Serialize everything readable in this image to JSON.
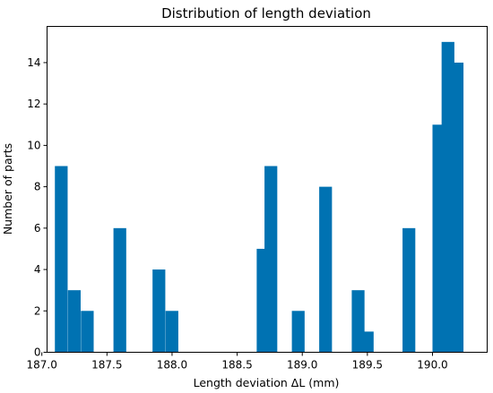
{
  "chart_data": {
    "type": "bar",
    "title": "Distribution of length deviation",
    "xlabel": "Length deviation ΔL (mm)",
    "ylabel": "Number of parts",
    "xlim": [
      187.04,
      190.42
    ],
    "ylim": [
      0,
      15.75
    ],
    "grid": false,
    "bar_color": "#0072b2",
    "bin_width": 0.098,
    "xticks": [
      187.0,
      187.5,
      188.0,
      188.5,
      189.0,
      189.5,
      190.0
    ],
    "yticks": [
      0,
      2,
      4,
      6,
      8,
      10,
      12,
      14
    ],
    "bins": [
      {
        "x": 187.1,
        "count": 9
      },
      {
        "x": 187.2,
        "count": 3
      },
      {
        "x": 187.3,
        "count": 2
      },
      {
        "x": 187.55,
        "count": 6
      },
      {
        "x": 187.85,
        "count": 4
      },
      {
        "x": 187.95,
        "count": 2
      },
      {
        "x": 188.65,
        "count": 5
      },
      {
        "x": 188.71,
        "count": 9
      },
      {
        "x": 188.92,
        "count": 2
      },
      {
        "x": 189.13,
        "count": 8
      },
      {
        "x": 189.38,
        "count": 3
      },
      {
        "x": 189.45,
        "count": 1
      },
      {
        "x": 189.77,
        "count": 6
      },
      {
        "x": 190.0,
        "count": 11
      },
      {
        "x": 190.07,
        "count": 15
      },
      {
        "x": 190.14,
        "count": 14
      }
    ]
  }
}
